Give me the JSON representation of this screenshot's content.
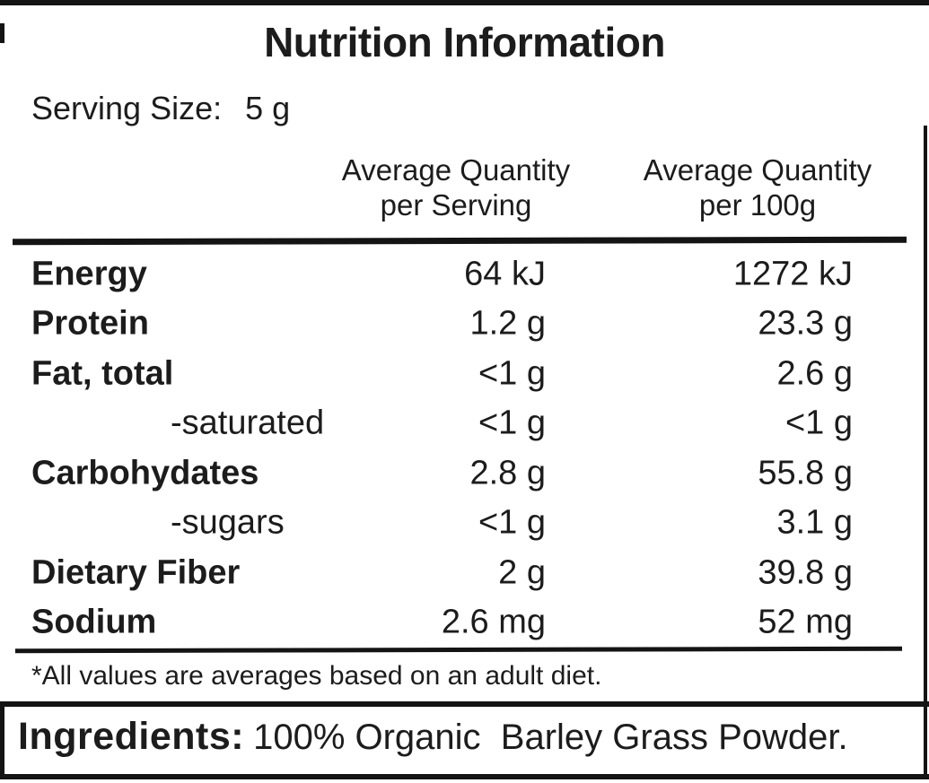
{
  "label": {
    "title": "Nutrition Information",
    "serving": {
      "label": "Serving Size:",
      "value": "5 g"
    },
    "columns": {
      "serving_line1": "Average Quantity",
      "serving_line2": "per Serving",
      "per100g_line1": "Average Quantity",
      "per100g_line2": "per 100g"
    },
    "rows": [
      {
        "name": "Energy",
        "per_serving": "64 kJ",
        "per_100g": "1272 kJ"
      },
      {
        "name": "Protein",
        "per_serving": "1.2 g",
        "per_100g": "23.3 g"
      },
      {
        "name": "Fat, total",
        "per_serving": "<1 g",
        "per_100g": "2.6 g"
      },
      {
        "name": "-saturated",
        "per_serving": "<1 g",
        "per_100g": "<1 g"
      },
      {
        "name": "Carbohydates",
        "per_serving": "2.8 g",
        "per_100g": "55.8 g"
      },
      {
        "name": "-sugars",
        "per_serving": "<1 g",
        "per_100g": "3.1 g"
      },
      {
        "name": "Dietary Fiber",
        "per_serving": "2 g",
        "per_100g": "39.8 g"
      },
      {
        "name": "Sodium",
        "per_serving": "2.6 mg",
        "per_100g": "52 mg"
      }
    ],
    "footnote": "*All values are averages based on an adult diet.",
    "ingredients": {
      "label": "Ingredients:",
      "value": "100% Organic  Barley Grass Powder."
    },
    "colors": {
      "text": "#1c1c1c",
      "rule": "#141414",
      "background": "#ffffff"
    }
  }
}
